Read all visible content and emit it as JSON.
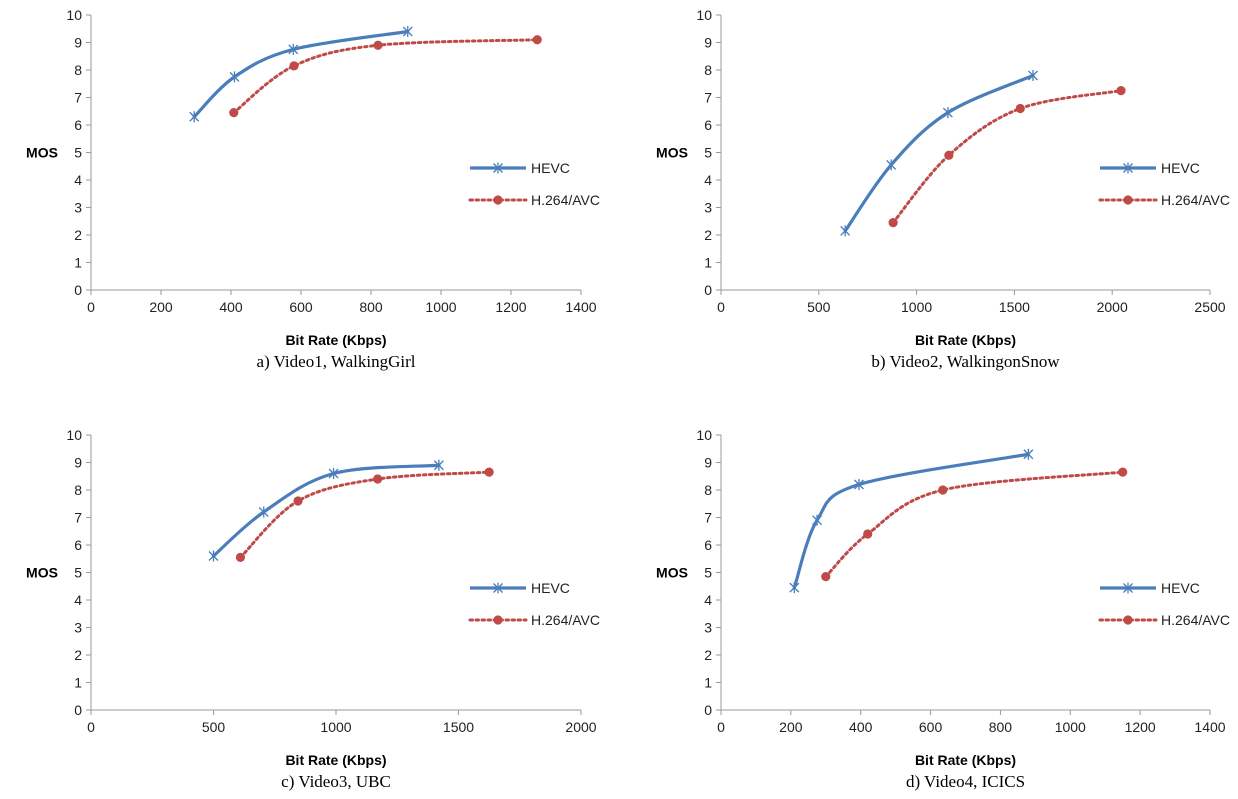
{
  "colors": {
    "hevc": "#4a7ebb",
    "avc": "#be4b48",
    "axis": "#9a9a9a"
  },
  "chart_data": [
    {
      "type": "line",
      "caption": "a) Video1, WalkingGirl",
      "xlabel": "Bit Rate (Kbps)",
      "ylabel": "MOS",
      "xlim": [
        0,
        1400
      ],
      "ylim": [
        0,
        10
      ],
      "xticks": [
        0,
        200,
        400,
        600,
        800,
        1000,
        1200,
        1400
      ],
      "yticks": [
        0,
        1,
        2,
        3,
        4,
        5,
        6,
        7,
        8,
        9,
        10
      ],
      "legend_position": "right",
      "series": [
        {
          "name": "HEVC",
          "style": "solid",
          "marker": "star",
          "points": [
            [
              295,
              6.3
            ],
            [
              410,
              7.75
            ],
            [
              578,
              8.75
            ],
            [
              905,
              9.4
            ]
          ]
        },
        {
          "name": "H.264/AVC",
          "style": "dotted",
          "marker": "circle",
          "points": [
            [
              408,
              6.45
            ],
            [
              580,
              8.15
            ],
            [
              820,
              8.9
            ],
            [
              1275,
              9.1
            ]
          ]
        }
      ]
    },
    {
      "type": "line",
      "caption": "b) Video2, WalkingonSnow",
      "xlabel": "Bit Rate (Kbps)",
      "ylabel": "MOS",
      "xlim": [
        0,
        2500
      ],
      "ylim": [
        0,
        10
      ],
      "xticks": [
        0,
        500,
        1000,
        1500,
        2000,
        2500
      ],
      "yticks": [
        0,
        1,
        2,
        3,
        4,
        5,
        6,
        7,
        8,
        9,
        10
      ],
      "legend_position": "right",
      "series": [
        {
          "name": "HEVC",
          "style": "solid",
          "marker": "star",
          "points": [
            [
              635,
              2.15
            ],
            [
              870,
              4.55
            ],
            [
              1160,
              6.45
            ],
            [
              1595,
              7.8
            ]
          ]
        },
        {
          "name": "H.264/AVC",
          "style": "dotted",
          "marker": "circle",
          "points": [
            [
              880,
              2.45
            ],
            [
              1165,
              4.9
            ],
            [
              1530,
              6.6
            ],
            [
              2045,
              7.25
            ]
          ]
        }
      ]
    },
    {
      "type": "line",
      "caption": "c) Video3, UBC",
      "xlabel": "Bit Rate (Kbps)",
      "ylabel": "MOS",
      "xlim": [
        0,
        2000
      ],
      "ylim": [
        0,
        10
      ],
      "xticks": [
        0,
        500,
        1000,
        1500,
        2000
      ],
      "yticks": [
        0,
        1,
        2,
        3,
        4,
        5,
        6,
        7,
        8,
        9,
        10
      ],
      "legend_position": "right",
      "series": [
        {
          "name": "HEVC",
          "style": "solid",
          "marker": "star",
          "points": [
            [
              500,
              5.6
            ],
            [
              705,
              7.2
            ],
            [
              990,
              8.6
            ],
            [
              1420,
              8.9
            ]
          ]
        },
        {
          "name": "H.264/AVC",
          "style": "dotted",
          "marker": "circle",
          "points": [
            [
              610,
              5.55
            ],
            [
              845,
              7.6
            ],
            [
              1170,
              8.4
            ],
            [
              1625,
              8.65
            ]
          ]
        }
      ]
    },
    {
      "type": "line",
      "caption": "d) Video4, ICICS",
      "xlabel": "Bit Rate (Kbps)",
      "ylabel": "MOS",
      "xlim": [
        0,
        1400
      ],
      "ylim": [
        0,
        10
      ],
      "xticks": [
        0,
        200,
        400,
        600,
        800,
        1000,
        1200,
        1400
      ],
      "yticks": [
        0,
        1,
        2,
        3,
        4,
        5,
        6,
        7,
        8,
        9,
        10
      ],
      "legend_position": "right",
      "series": [
        {
          "name": "HEVC",
          "style": "solid",
          "marker": "star",
          "points": [
            [
              210,
              4.45
            ],
            [
              275,
              6.9
            ],
            [
              395,
              8.2
            ],
            [
              880,
              9.3
            ]
          ]
        },
        {
          "name": "H.264/AVC",
          "style": "dotted",
          "marker": "circle",
          "points": [
            [
              300,
              4.85
            ],
            [
              420,
              6.4
            ],
            [
              635,
              8.0
            ],
            [
              1150,
              8.65
            ]
          ]
        }
      ]
    }
  ]
}
